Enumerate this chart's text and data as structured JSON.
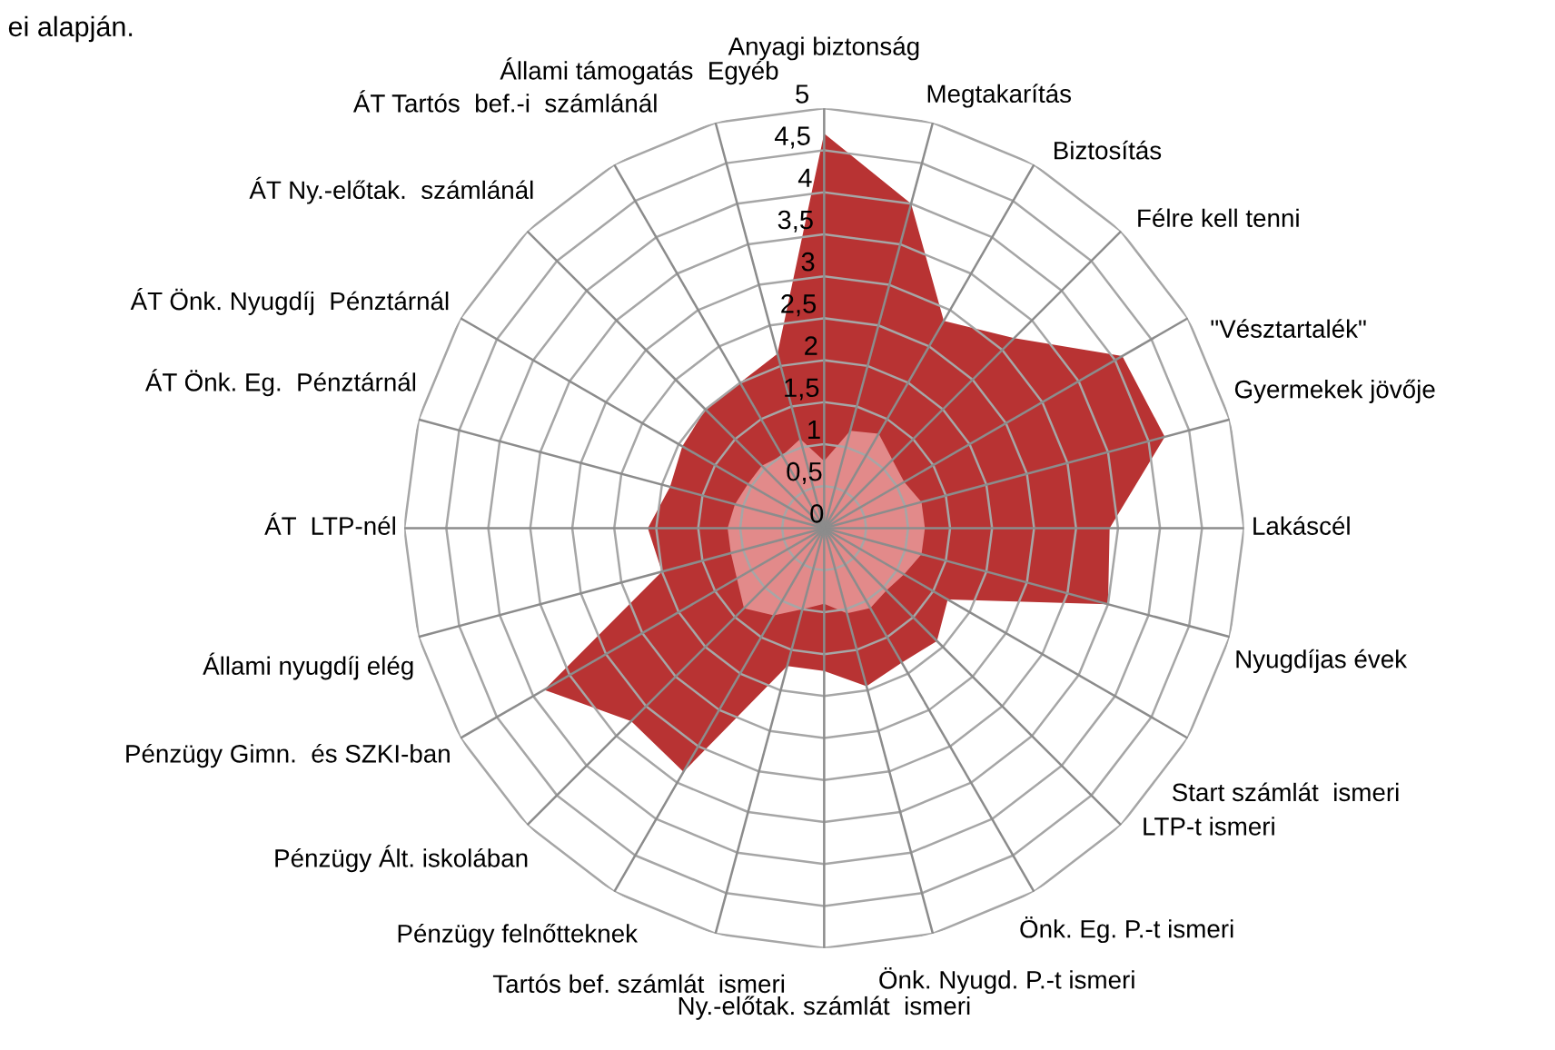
{
  "chart_data": {
    "type": "radar",
    "annotations": [
      "ei alapján."
    ],
    "categories": [
      "Anyagi biztonság",
      "Megtakarítás",
      "Biztosítás",
      "Félre kell tenni",
      "\"Vésztartalék\"",
      "Gyermekek jövője",
      "Lakáscél",
      "Nyugdíjas évek",
      "Start számlát  ismeri",
      "LTP-t ismeri",
      "Önk. Eg. P.-t ismeri",
      "Önk. Nyugd. P.-t ismeri",
      "Ny.-előtak. számlát  ismeri",
      "Tartós bef. számlát  ismeri",
      "Pénzügy felnőtteknek",
      "Pénzügy Ált. iskolában",
      "Pénzügy Gimn.  és SZKI-ban",
      "Állami nyugdíj elég",
      "ÁT  LTP-nél",
      "ÁT Önk. Eg.  Pénztárnál",
      "ÁT Önk. Nyugdíj  Pénztárnál",
      "ÁT Ny.-előtak.  számlánál",
      "ÁT Tartós  bef.-i  számlánál",
      "Állami támogatás  Egyéb"
    ],
    "series": [
      {
        "color": "#b83333",
        "values": [
          4.7,
          4.0,
          2.85,
          3.2,
          4.1,
          4.2,
          3.4,
          3.5,
          1.7,
          1.9,
          1.85,
          1.95,
          1.7,
          1.7,
          3.35,
          3.25,
          3.85,
          2.0,
          2.1,
          1.9,
          1.95,
          2.0,
          2.0,
          2.15
        ]
      },
      {
        "color": "#e59191",
        "values": [
          0.8,
          1.2,
          1.3,
          1.15,
          1.1,
          1.2,
          1.2,
          1.2,
          1.1,
          1.05,
          1.1,
          1.05,
          0.9,
          1.0,
          1.2,
          1.35,
          1.2,
          1.15,
          1.15,
          1.1,
          1.05,
          1.05,
          1.0,
          1.1
        ]
      }
    ],
    "ylim": [
      0,
      5
    ],
    "yticks": [
      0,
      {
        "value": 0.5,
        "label": "0,5"
      },
      1,
      {
        "value": 1.5,
        "label": "1,5"
      },
      2,
      {
        "value": 2.5,
        "label": "2,5"
      },
      3,
      {
        "value": 3.5,
        "label": "3,5"
      },
      4,
      {
        "value": 4.5,
        "label": "4,5"
      },
      5
    ],
    "grid": true
  }
}
